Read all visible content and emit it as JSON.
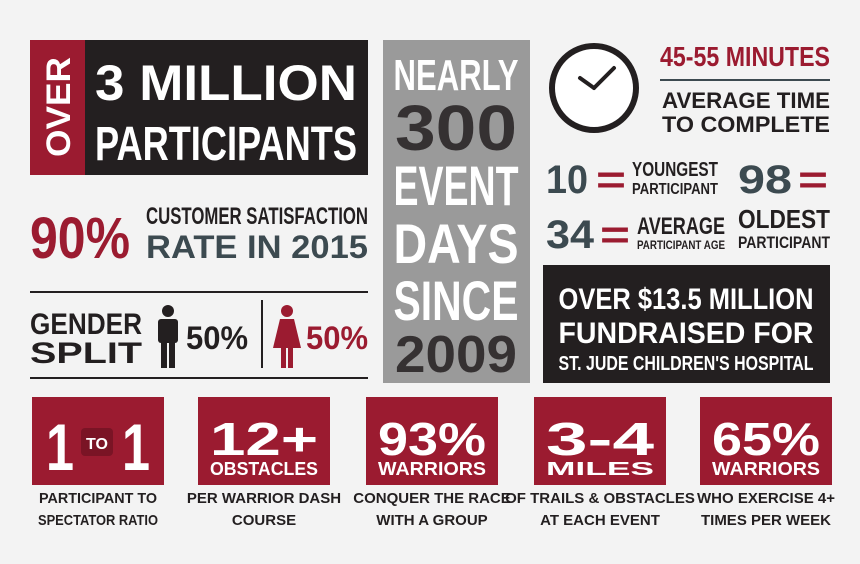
{
  "participants": {
    "prefix": "OVER",
    "headline": "3 MILLION",
    "label": "PARTICIPANTS"
  },
  "satisfaction": {
    "value": "90%",
    "line1": "CUSTOMER SATISFACTION",
    "line2": "RATE IN 2015"
  },
  "gender": {
    "label": [
      "GENDER",
      "SPLIT"
    ],
    "male": "50%",
    "female": "50%"
  },
  "events": {
    "lines": [
      "NEARLY",
      "300",
      "EVENT",
      "DAYS",
      "SINCE",
      "2009"
    ]
  },
  "time": {
    "headline": "45-55 MINUTES",
    "lines": [
      "AVERAGE TIME",
      "TO COMPLETE"
    ]
  },
  "ages": {
    "youngest": {
      "value": "10",
      "sign": "=",
      "label": [
        "YOUNGEST",
        "PARTICIPANT"
      ]
    },
    "average": {
      "value": "34",
      "sign": "=",
      "label": [
        "AVERAGE",
        "PARTICIPANT AGE"
      ]
    },
    "oldest": {
      "value": "98",
      "sign": "=",
      "label": [
        "OLDEST",
        "PARTICIPANT"
      ]
    }
  },
  "fundraising": {
    "lines": [
      "OVER $13.5 MILLION",
      "FUNDRAISED FOR",
      "ST. JUDE CHILDREN'S HOSPITAL"
    ]
  },
  "ratio": {
    "left": "1",
    "middle": "TO",
    "right": "1",
    "caption": [
      "PARTICIPANT TO",
      "SPECTATOR RATIO"
    ]
  },
  "stats": [
    {
      "value": "12+",
      "sublabel": "OBSTACLES",
      "caption": [
        "PER WARRIOR DASH",
        "COURSE"
      ]
    },
    {
      "value": "93%",
      "sublabel": "WARRIORS",
      "caption": [
        "CONQUER THE RACE",
        "WITH A GROUP"
      ]
    },
    {
      "value": "3-4",
      "sublabel": "MILES",
      "caption": [
        "OF TRAILS & OBSTACLES",
        "AT EACH EVENT"
      ]
    },
    {
      "value": "65%",
      "sublabel": "WARRIORS",
      "caption": [
        "WHO EXERCISE 4+",
        "TIMES PER WEEK"
      ]
    }
  ]
}
